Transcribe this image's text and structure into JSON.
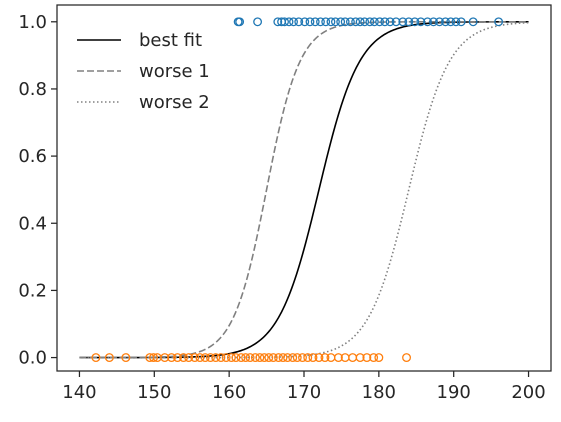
{
  "chart_data": {
    "type": "scatter",
    "title": "",
    "xlabel": "",
    "ylabel": "",
    "xlim": [
      137,
      203
    ],
    "ylim": [
      -0.04,
      1.05
    ],
    "grid": false,
    "legend": {
      "location": "upper-left",
      "entries": [
        {
          "label": "best fit",
          "style": "solid",
          "color": "#000000"
        },
        {
          "label": "worse 1",
          "style": "dashed",
          "color": "#808080"
        },
        {
          "label": "worse 2",
          "style": "dotted",
          "color": "#808080"
        }
      ]
    },
    "x_ticks": [
      140,
      150,
      160,
      170,
      180,
      190,
      200
    ],
    "x_tick_labels": [
      "140",
      "150",
      "160",
      "170",
      "180",
      "190",
      "200"
    ],
    "y_ticks": [
      0.0,
      0.2,
      0.4,
      0.6,
      0.8,
      1.0
    ],
    "y_tick_labels": [
      "0.0",
      "0.2",
      "0.4",
      "0.6",
      "0.8",
      "1.0"
    ],
    "curves": [
      {
        "label": "best fit",
        "function": "logistic",
        "midpoint": 172,
        "slope": 0.37,
        "x_range": [
          140,
          200
        ],
        "color": "#000000",
        "style": "solid"
      },
      {
        "label": "worse 1",
        "function": "logistic",
        "midpoint": 165,
        "slope": 0.45,
        "x_range": [
          140,
          200
        ],
        "color": "#808080",
        "style": "dashed"
      },
      {
        "label": "worse 2",
        "function": "logistic",
        "midpoint": 184,
        "slope": 0.37,
        "x_range": [
          140,
          200
        ],
        "color": "#808080",
        "style": "dotted"
      }
    ],
    "scatter_series": [
      {
        "y": 1,
        "color": "#1f77b4",
        "marker": "open-circle",
        "x": [
          161.2,
          161.4,
          163.8,
          166.5,
          167.0,
          167.4,
          168.0,
          168.6,
          169.3,
          170.1,
          170.8,
          171.5,
          172.2,
          172.9,
          173.6,
          174.2,
          174.9,
          175.5,
          176.2,
          176.9,
          177.5,
          178.1,
          178.8,
          179.4,
          180.1,
          180.8,
          181.5,
          182.3,
          183.2,
          184.0,
          184.8,
          185.6,
          186.5,
          187.3,
          188.1,
          188.9,
          189.6,
          190.3,
          191.0,
          192.6,
          196.0
        ]
      },
      {
        "y": 0,
        "color": "#ff7f0e",
        "marker": "open-circle",
        "x": [
          142.2,
          144.0,
          146.2,
          149.4,
          149.9,
          150.4,
          151.4,
          152.3,
          153.1,
          153.9,
          154.6,
          155.4,
          156.1,
          156.8,
          157.5,
          158.2,
          158.9,
          159.6,
          160.3,
          160.9,
          161.6,
          162.2,
          162.8,
          163.5,
          164.1,
          164.7,
          165.3,
          165.9,
          166.6,
          167.2,
          167.8,
          168.5,
          169.1,
          169.8,
          170.5,
          171.2,
          172.0,
          172.8,
          173.6,
          174.6,
          175.5,
          176.5,
          177.5,
          178.4,
          179.3,
          180.0,
          183.7
        ]
      }
    ]
  }
}
